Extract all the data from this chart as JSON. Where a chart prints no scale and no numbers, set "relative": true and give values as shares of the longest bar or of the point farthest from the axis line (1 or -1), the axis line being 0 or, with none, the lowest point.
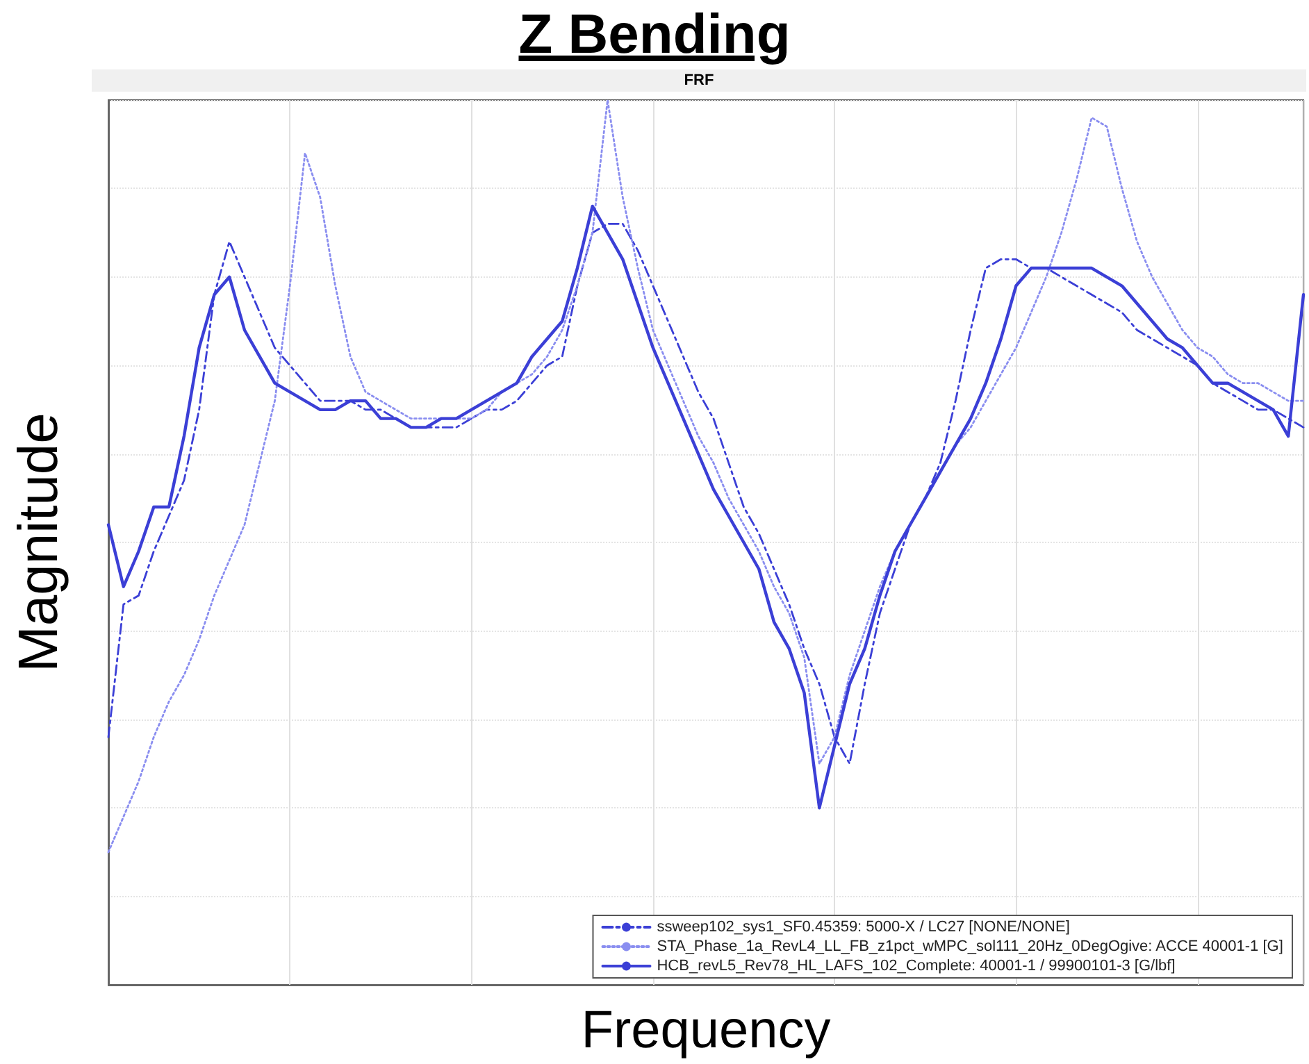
{
  "chart_data": {
    "type": "line",
    "title": "Z Bending",
    "subtitle": "FRF",
    "xlabel": "Frequency",
    "ylabel": "Magnitude",
    "relative": true,
    "grid": true,
    "legend": "bottom right",
    "marker": "none",
    "categories": [
      null,
      null,
      null,
      null,
      null,
      null,
      null,
      null,
      null,
      null,
      null,
      null,
      null,
      null,
      null,
      null,
      null,
      null,
      null,
      null,
      null,
      null,
      null,
      null,
      null,
      null,
      null,
      null,
      null,
      null,
      null,
      null,
      null,
      null,
      null,
      null,
      null,
      null,
      null,
      null,
      null,
      null,
      null,
      null,
      null,
      null,
      null,
      null,
      null,
      null,
      null,
      null,
      null,
      null,
      null,
      null,
      null,
      null,
      null,
      null,
      null,
      null,
      null,
      null,
      null,
      null,
      null,
      null,
      null,
      null,
      null,
      null,
      null,
      null,
      null,
      null,
      null,
      null,
      null,
      null
    ],
    "series": [
      {
        "name": "ssweep102_sys1_SF0.45359: 5000-X / LC27 [NONE/NONE]",
        "color": "#3b3fd6",
        "line_style": "dashed",
        "values": [
          0.28,
          0.43,
          0.44,
          0.49,
          0.53,
          0.57,
          0.65,
          0.78,
          0.84,
          0.8,
          0.76,
          0.72,
          0.7,
          0.68,
          0.66,
          0.66,
          0.66,
          0.65,
          0.65,
          0.64,
          0.63,
          0.63,
          0.63,
          0.63,
          0.64,
          0.65,
          0.65,
          0.66,
          0.68,
          0.7,
          0.71,
          0.79,
          0.85,
          0.86,
          0.86,
          0.83,
          0.79,
          0.75,
          0.71,
          0.67,
          0.64,
          0.59,
          0.54,
          0.51,
          0.47,
          0.43,
          0.38,
          0.34,
          0.28,
          0.25,
          0.34,
          0.42,
          0.47,
          0.52,
          0.55,
          0.59,
          0.66,
          0.74,
          0.81,
          0.82,
          0.82,
          0.81,
          0.81,
          0.8,
          0.79,
          0.78,
          0.77,
          0.76,
          0.74,
          0.73,
          0.72,
          0.71,
          0.7,
          0.68,
          0.67,
          0.66,
          0.65,
          0.65,
          0.64,
          0.63
        ]
      },
      {
        "name": "STA_Phase_1a_RevL4_LL_FB_z1pct_wMPC_sol111_20Hz_0DegOgive: ACCE 40001-1 [G]",
        "color": "#8a8ef0",
        "line_style": "dotted",
        "values": [
          0.15,
          0.19,
          0.23,
          0.28,
          0.32,
          0.35,
          0.39,
          0.44,
          0.48,
          0.52,
          0.59,
          0.66,
          0.79,
          0.94,
          0.89,
          0.79,
          0.71,
          0.67,
          0.66,
          0.65,
          0.64,
          0.64,
          0.64,
          0.64,
          0.64,
          0.65,
          0.67,
          0.68,
          0.69,
          0.71,
          0.74,
          0.79,
          0.85,
          1.0,
          0.89,
          0.81,
          0.74,
          0.7,
          0.66,
          0.62,
          0.59,
          0.55,
          0.52,
          0.49,
          0.45,
          0.42,
          0.37,
          0.25,
          0.28,
          0.35,
          0.4,
          0.45,
          0.49,
          0.52,
          0.55,
          0.58,
          0.61,
          0.63,
          0.66,
          0.69,
          0.72,
          0.76,
          0.8,
          0.85,
          0.91,
          0.98,
          0.97,
          0.9,
          0.84,
          0.8,
          0.77,
          0.74,
          0.72,
          0.71,
          0.69,
          0.68,
          0.68,
          0.67,
          0.66,
          0.66
        ]
      },
      {
        "name": "HCB_revL5_Rev78_HL_LAFS_102_Complete: 40001-1 / 99900101-3 [G/lbf]",
        "color": "#3b3fd6",
        "line_style": "solid",
        "values": [
          0.52,
          0.45,
          0.49,
          0.54,
          0.54,
          0.62,
          0.72,
          0.78,
          0.8,
          0.74,
          0.71,
          0.68,
          0.67,
          0.66,
          0.65,
          0.65,
          0.66,
          0.66,
          0.64,
          0.64,
          0.63,
          0.63,
          0.64,
          0.64,
          0.65,
          0.66,
          0.67,
          0.68,
          0.71,
          0.73,
          0.75,
          0.81,
          0.88,
          0.85,
          0.82,
          0.77,
          0.72,
          0.68,
          0.64,
          0.6,
          0.56,
          0.53,
          0.5,
          0.47,
          0.41,
          0.38,
          0.33,
          0.2,
          0.27,
          0.34,
          0.38,
          0.44,
          0.49,
          0.52,
          0.55,
          0.58,
          0.61,
          0.64,
          0.68,
          0.73,
          0.79,
          0.81,
          0.81,
          0.81,
          0.81,
          0.81,
          0.8,
          0.79,
          0.77,
          0.75,
          0.73,
          0.72,
          0.7,
          0.68,
          0.68,
          0.67,
          0.66,
          0.65,
          0.62,
          0.78
        ]
      }
    ]
  }
}
